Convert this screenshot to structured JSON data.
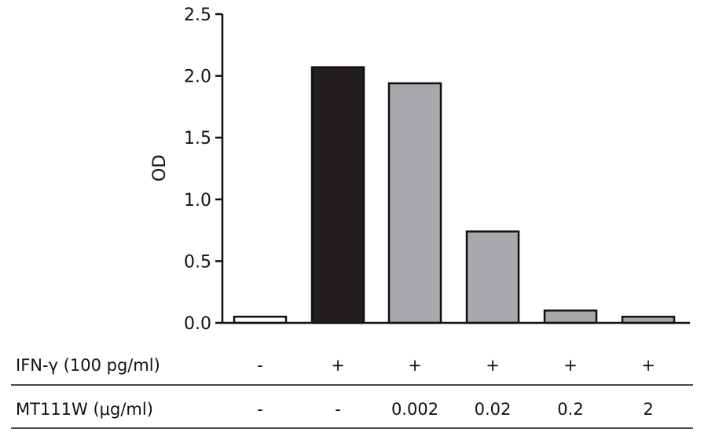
{
  "chart_data": {
    "type": "bar",
    "ylabel": "OD",
    "ylim": [
      0,
      2.5
    ],
    "yticks": [
      "0.0",
      "0.5",
      "1.0",
      "1.5",
      "2.0",
      "2.5"
    ],
    "grid": false,
    "legend": "none",
    "values": [
      0.05,
      2.07,
      1.94,
      0.74,
      0.1,
      0.05
    ],
    "bar_colors": [
      "#ffffff",
      "#231f20",
      "#a7a9ac",
      "#a7a9ac",
      "#a7a9ac",
      "#a7a9ac"
    ],
    "condition_rows": [
      {
        "label": "IFN-γ (100 pg/ml)",
        "cells": [
          "-",
          "+",
          "+",
          "+",
          "+",
          "+"
        ]
      },
      {
        "label": "MT111W (μg/ml)",
        "cells": [
          "-",
          "-",
          "0.002",
          "0.02",
          "0.2",
          "2"
        ]
      }
    ]
  }
}
